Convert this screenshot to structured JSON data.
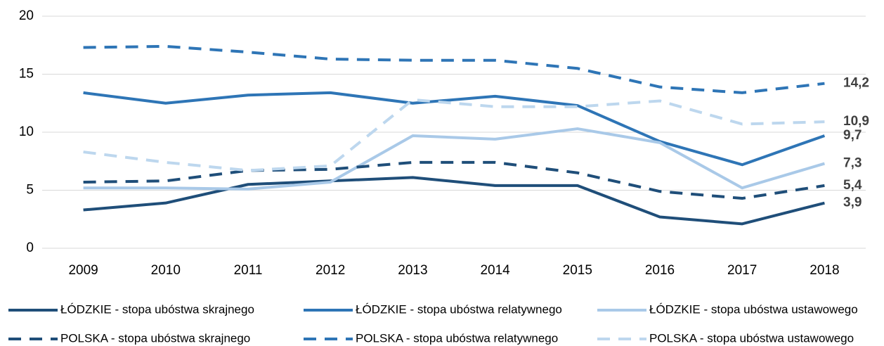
{
  "chart_data": {
    "type": "line",
    "categories": [
      "2009",
      "2010",
      "2011",
      "2012",
      "2013",
      "2014",
      "2015",
      "2016",
      "2017",
      "2018"
    ],
    "ylim": [
      0,
      20
    ],
    "yticks": [
      0,
      5,
      10,
      15,
      20
    ],
    "grid": true,
    "series": [
      {
        "name": "ŁÓDZKIE - stopa ubóstwa skrajnego",
        "color": "#1f4e79",
        "dashed": false,
        "values": [
          3.3,
          3.9,
          5.5,
          5.8,
          6.1,
          5.4,
          5.4,
          2.7,
          2.1,
          3.9
        ],
        "value_labels": [
          null,
          null,
          null,
          null,
          null,
          null,
          null,
          null,
          null,
          "3,9"
        ]
      },
      {
        "name": "ŁÓDZKIE - stopa ubóstwa relatywnego",
        "color": "#2e75b6",
        "dashed": false,
        "values": [
          13.4,
          12.5,
          13.2,
          13.4,
          12.5,
          13.1,
          12.3,
          9.2,
          7.2,
          9.7
        ],
        "value_labels": [
          null,
          null,
          null,
          null,
          null,
          null,
          null,
          null,
          null,
          "9,7"
        ]
      },
      {
        "name": "ŁÓDZKIE - stopa ubóstwa ustawowego",
        "color": "#a9c9e8",
        "dashed": false,
        "values": [
          5.2,
          5.2,
          5.1,
          5.7,
          9.7,
          9.4,
          10.3,
          9.1,
          5.2,
          7.3
        ],
        "value_labels": [
          null,
          null,
          null,
          null,
          null,
          null,
          null,
          null,
          null,
          "7,3"
        ]
      },
      {
        "name": "POLSKA - stopa ubóstwa skrajnego",
        "color": "#1f4e79",
        "dashed": true,
        "values": [
          5.7,
          5.8,
          6.7,
          6.8,
          7.4,
          7.4,
          6.5,
          4.9,
          4.3,
          5.4
        ],
        "value_labels": [
          null,
          null,
          null,
          null,
          null,
          null,
          null,
          null,
          null,
          "5,4"
        ]
      },
      {
        "name": "POLSKA - stopa ubóstwa relatywnego",
        "color": "#2e75b6",
        "dashed": true,
        "values": [
          17.3,
          17.4,
          16.9,
          16.3,
          16.2,
          16.2,
          15.5,
          13.9,
          13.4,
          14.2
        ],
        "value_labels": [
          null,
          null,
          null,
          null,
          null,
          null,
          null,
          null,
          null,
          "14,2"
        ]
      },
      {
        "name": "POLSKA - stopa ubóstwa ustawowego",
        "color": "#bdd7ee",
        "dashed": true,
        "values": [
          8.3,
          7.4,
          6.7,
          7.1,
          12.8,
          12.2,
          12.2,
          12.7,
          10.7,
          10.9
        ],
        "value_labels": [
          null,
          null,
          null,
          null,
          null,
          null,
          null,
          null,
          null,
          "10,9"
        ]
      }
    ]
  }
}
